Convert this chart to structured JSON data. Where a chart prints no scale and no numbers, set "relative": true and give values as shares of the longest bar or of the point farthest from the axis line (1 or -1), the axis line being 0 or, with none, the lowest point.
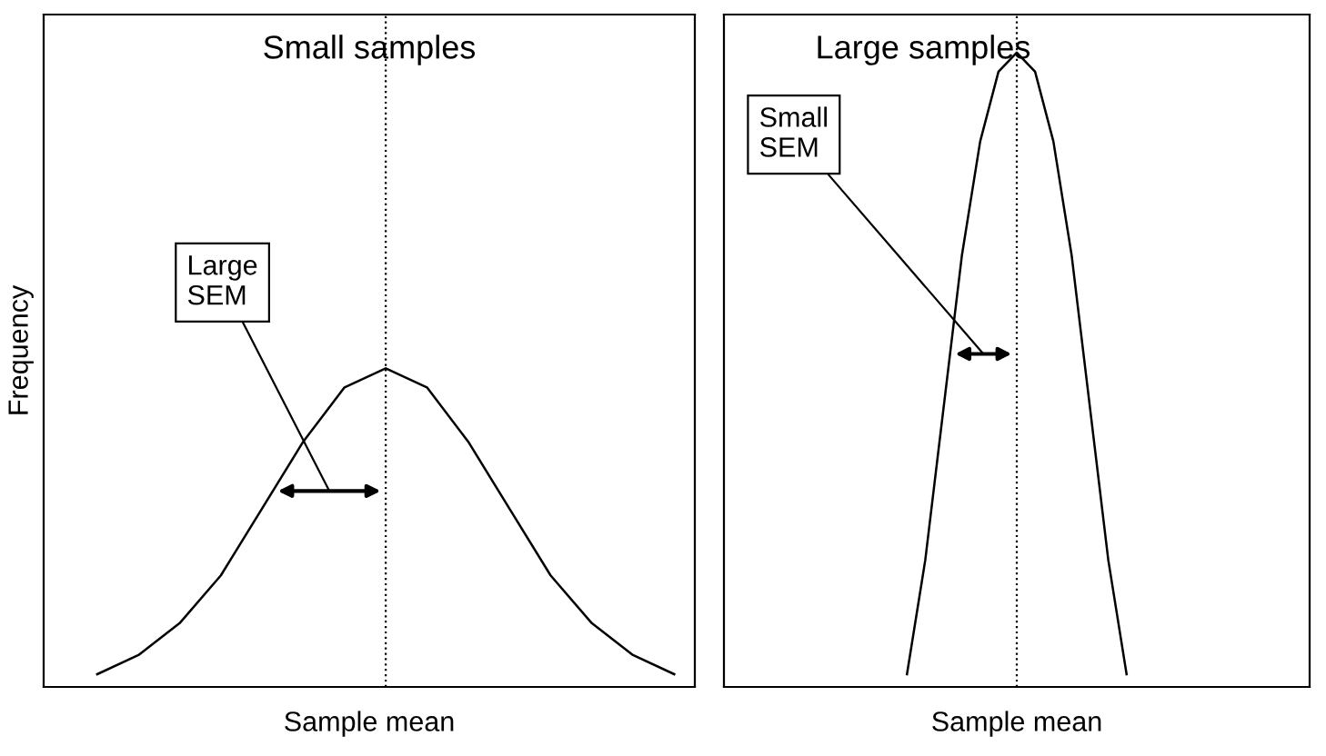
{
  "chart_data": [
    {
      "type": "line",
      "relative": true,
      "title": "Small samples",
      "xlabel": "Sample mean",
      "ylabel": "Frequency",
      "marker": "none",
      "line_style": "solid",
      "categories": [
        null,
        null,
        null,
        null,
        null,
        null,
        null,
        null,
        null,
        null,
        null,
        null,
        null,
        null,
        null
      ],
      "series": [
        {
          "color": "#000000",
          "values": [
            0.04,
            0.1,
            0.2,
            0.35,
            0.56,
            0.77,
            0.94,
            1.0,
            0.94,
            0.77,
            0.56,
            0.35,
            0.2,
            0.1,
            0.04
          ]
        }
      ],
      "ref_lines": [
        {
          "axis": "x",
          "line_style": "dotted",
          "color": "#000000"
        }
      ],
      "annotations": [
        "Large\nSEM"
      ]
    },
    {
      "type": "line",
      "relative": true,
      "title": "Large samples",
      "xlabel": "Sample mean",
      "marker": "none",
      "line_style": "solid",
      "categories": [
        null,
        null,
        null,
        null,
        null,
        null,
        null,
        null,
        null,
        null,
        null,
        null,
        null
      ],
      "series": [
        {
          "color": "#000000",
          "values": [
            0.02,
            0.2,
            0.44,
            0.68,
            0.86,
            0.97,
            1.0,
            0.97,
            0.86,
            0.68,
            0.44,
            0.2,
            0.02
          ]
        }
      ],
      "ref_lines": [
        {
          "axis": "x",
          "line_style": "dotted",
          "color": "#000000"
        }
      ],
      "annotations": [
        "Small\nSEM"
      ]
    }
  ]
}
